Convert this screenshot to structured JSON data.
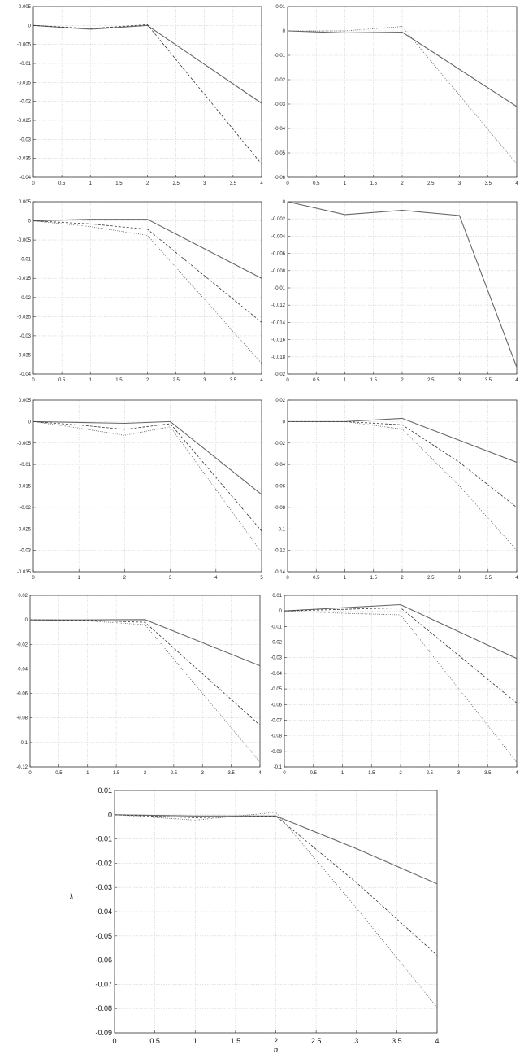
{
  "chart_data": [
    {
      "type": "line",
      "title": "",
      "xlabel": "",
      "ylabel": "",
      "xlim": [
        0,
        4
      ],
      "ylim": [
        -0.04,
        0.005
      ],
      "xticks": [
        "0",
        "0.5",
        "1",
        "1.5",
        "2",
        "2.5",
        "3",
        "3.5",
        "4"
      ],
      "yticks": [
        "0.005",
        "0",
        "-0.005",
        "-0.01",
        "-0.015",
        "-0.02",
        "-0.025",
        "-0.03",
        "-0.035",
        "-0.04"
      ],
      "grid": true,
      "series": [
        {
          "style": "solid",
          "x": [
            0,
            1,
            2,
            4
          ],
          "y": [
            0,
            -0.001,
            0,
            -0.0205
          ]
        },
        {
          "style": "dashed",
          "x": [
            0,
            1,
            2,
            4
          ],
          "y": [
            0,
            -0.0008,
            0.0002,
            -0.0365
          ]
        }
      ]
    },
    {
      "type": "line",
      "title": "",
      "xlabel": "",
      "ylabel": "",
      "xlim": [
        0,
        4
      ],
      "ylim": [
        -0.06,
        0.01
      ],
      "xticks": [
        "0",
        "0.5",
        "1",
        "1.5",
        "2",
        "2.5",
        "3",
        "3.5",
        "4"
      ],
      "yticks": [
        "0.01",
        "0",
        "-0.01",
        "-0.02",
        "-0.03",
        "-0.04",
        "-0.05",
        "-0.06"
      ],
      "grid": true,
      "series": [
        {
          "style": "solid",
          "x": [
            0,
            1,
            2,
            4
          ],
          "y": [
            0,
            -0.0008,
            -0.0005,
            -0.031
          ]
        },
        {
          "style": "dotted",
          "x": [
            0,
            1,
            2,
            4
          ],
          "y": [
            0,
            0,
            0.0018,
            -0.0545
          ]
        }
      ]
    },
    {
      "type": "line",
      "title": "",
      "xlabel": "",
      "ylabel": "",
      "xlim": [
        0,
        4
      ],
      "ylim": [
        -0.04,
        0.005
      ],
      "xticks": [
        "0",
        "0.5",
        "1",
        "1.5",
        "2",
        "2.5",
        "3",
        "3.5",
        "4"
      ],
      "yticks": [
        "0.005",
        "0",
        "-0.005",
        "-0.01",
        "-0.015",
        "-0.02",
        "-0.025",
        "-0.03",
        "-0.035",
        "-0.04"
      ],
      "grid": true,
      "series": [
        {
          "style": "solid",
          "x": [
            0,
            1,
            2,
            4
          ],
          "y": [
            0,
            0.0004,
            0.0004,
            -0.015
          ]
        },
        {
          "style": "dashed",
          "x": [
            0,
            1,
            2,
            4
          ],
          "y": [
            0,
            -0.0008,
            -0.0022,
            -0.0265
          ]
        },
        {
          "style": "dotted",
          "x": [
            0,
            1,
            2,
            4
          ],
          "y": [
            0,
            -0.0015,
            -0.0038,
            -0.0372
          ]
        }
      ]
    },
    {
      "type": "line",
      "title": "",
      "xlabel": "",
      "ylabel": "",
      "xlim": [
        0,
        4
      ],
      "ylim": [
        -0.02,
        0
      ],
      "xticks": [
        "0",
        "0.5",
        "1",
        "1.5",
        "2",
        "2.5",
        "3",
        "3.5",
        "4"
      ],
      "yticks": [
        "0",
        "-0.002",
        "-0.004",
        "-0.006",
        "-0.008",
        "-0.01",
        "-0.012",
        "-0.014",
        "-0.016",
        "-0.018",
        "-0.02"
      ],
      "grid": true,
      "series": [
        {
          "style": "solid",
          "x": [
            0,
            1,
            2,
            3,
            4
          ],
          "y": [
            0,
            -0.0015,
            -0.001,
            -0.0016,
            -0.0192
          ]
        }
      ]
    },
    {
      "type": "line",
      "title": "",
      "xlabel": "",
      "ylabel": "",
      "xlim": [
        0,
        5
      ],
      "ylim": [
        -0.035,
        0.005
      ],
      "xticks": [
        "0",
        "1",
        "2",
        "3",
        "4",
        "5"
      ],
      "yticks": [
        "0.005",
        "0",
        "-0.005",
        "-0.01",
        "-0.015",
        "-0.02",
        "-0.025",
        "-0.03",
        "-0.035"
      ],
      "grid": true,
      "series": [
        {
          "style": "solid",
          "x": [
            0,
            1,
            2,
            3,
            5
          ],
          "y": [
            0,
            -0.0002,
            -0.0004,
            0,
            -0.017
          ]
        },
        {
          "style": "dashed",
          "x": [
            0,
            1,
            2,
            3,
            5
          ],
          "y": [
            0,
            -0.0008,
            -0.0018,
            -0.0005,
            -0.0255
          ]
        },
        {
          "style": "dotted",
          "x": [
            0,
            1,
            2,
            3,
            5
          ],
          "y": [
            0,
            -0.0015,
            -0.0032,
            -0.0012,
            -0.0305
          ]
        }
      ]
    },
    {
      "type": "line",
      "title": "",
      "xlabel": "",
      "ylabel": "",
      "xlim": [
        0,
        4
      ],
      "ylim": [
        -0.14,
        0.02
      ],
      "xticks": [
        "0",
        "0.5",
        "1",
        "1.5",
        "2",
        "2.5",
        "3",
        "3.5",
        "4"
      ],
      "yticks": [
        "0.02",
        "0",
        "-0.02",
        "-0.04",
        "-0.06",
        "-0.08",
        "-0.1",
        "-0.12",
        "-0.14"
      ],
      "grid": true,
      "series": [
        {
          "style": "solid",
          "x": [
            0,
            1,
            2,
            4
          ],
          "y": [
            0,
            0,
            0.003,
            -0.038
          ]
        },
        {
          "style": "dashed",
          "x": [
            0,
            1,
            2,
            3,
            4
          ],
          "y": [
            0,
            0,
            -0.003,
            -0.038,
            -0.08
          ]
        },
        {
          "style": "dotted",
          "x": [
            0,
            1,
            2,
            3,
            4
          ],
          "y": [
            0,
            0,
            -0.007,
            -0.06,
            -0.12
          ]
        }
      ]
    },
    {
      "type": "line",
      "title": "",
      "xlabel": "",
      "ylabel": "",
      "xlim": [
        0,
        4
      ],
      "ylim": [
        -0.12,
        0.02
      ],
      "xticks": [
        "0",
        "0.5",
        "1",
        "1.5",
        "2",
        "2.5",
        "3",
        "3.5",
        "4"
      ],
      "yticks": [
        "0.02",
        "0",
        "-0.02",
        "-0.04",
        "-0.06",
        "-0.08",
        "-0.1",
        "-0.12"
      ],
      "grid": true,
      "series": [
        {
          "style": "solid",
          "x": [
            0,
            1,
            2,
            4
          ],
          "y": [
            0,
            0,
            0.0002,
            -0.0375
          ]
        },
        {
          "style": "dashed",
          "x": [
            0,
            1,
            2,
            4
          ],
          "y": [
            0,
            -0.0003,
            -0.002,
            -0.086
          ]
        },
        {
          "style": "dotted",
          "x": [
            0,
            1,
            2,
            4
          ],
          "y": [
            0,
            -0.0008,
            -0.004,
            -0.116
          ]
        }
      ]
    },
    {
      "type": "line",
      "title": "",
      "xlabel": "",
      "ylabel": "",
      "xlim": [
        0,
        4
      ],
      "ylim": [
        -0.1,
        0.01
      ],
      "xticks": [
        "0",
        "0.5",
        "1",
        "1.5",
        "2",
        "2.5",
        "3",
        "3.5",
        "4"
      ],
      "yticks": [
        "0.01",
        "0",
        "-0.01",
        "-0.02",
        "-0.03",
        "-0.04",
        "-0.05",
        "-0.06",
        "-0.07",
        "-0.08",
        "-0.09",
        "-0.1"
      ],
      "grid": true,
      "series": [
        {
          "style": "solid",
          "x": [
            0,
            1,
            2,
            4
          ],
          "y": [
            0,
            0.002,
            0.004,
            -0.0305
          ]
        },
        {
          "style": "dashed",
          "x": [
            0,
            1,
            2,
            4
          ],
          "y": [
            0,
            0.001,
            0.002,
            -0.059
          ]
        },
        {
          "style": "dotted",
          "x": [
            0,
            1,
            2,
            4
          ],
          "y": [
            0,
            -0.0015,
            -0.0025,
            -0.097
          ]
        }
      ]
    },
    {
      "type": "line",
      "title": "",
      "xlabel": "n",
      "ylabel": "λ",
      "xlim": [
        0,
        4
      ],
      "ylim": [
        -0.09,
        0.01
      ],
      "xticks": [
        "0",
        "0.5",
        "1",
        "1.5",
        "2",
        "2.5",
        "3",
        "3.5",
        "4"
      ],
      "yticks": [
        "0.01",
        "0",
        "-0.01",
        "-0.02",
        "-0.03",
        "-0.04",
        "-0.05",
        "-0.06",
        "-0.07",
        "-0.08",
        "-0.09"
      ],
      "grid": true,
      "series": [
        {
          "style": "solid",
          "x": [
            0,
            1,
            2,
            3,
            4
          ],
          "y": [
            0,
            -0.0005,
            -0.0005,
            -0.014,
            -0.0285
          ]
        },
        {
          "style": "dashed",
          "x": [
            0,
            1,
            2,
            3,
            4
          ],
          "y": [
            0,
            -0.0012,
            -0.0005,
            -0.028,
            -0.058
          ]
        },
        {
          "style": "dotted",
          "x": [
            0,
            1,
            2,
            3,
            4
          ],
          "y": [
            0,
            -0.0022,
            0.001,
            -0.0385,
            -0.0795
          ]
        }
      ]
    }
  ]
}
